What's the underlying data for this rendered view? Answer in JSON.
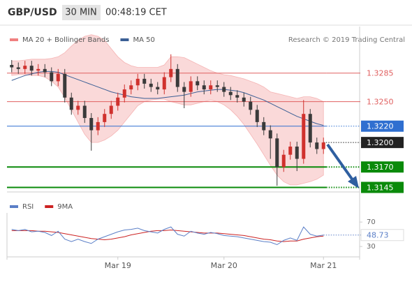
{
  "header": {
    "symbol": "GBP/USD",
    "timeframe": "30 MIN",
    "time": "00:48:19 CET"
  },
  "chart_data": {
    "type": "candlestick",
    "credit": "Research © 2019 Trading Central",
    "up_color": "#d0312d",
    "down_color": "#3a3a3a",
    "categories": [
      null,
      null,
      null,
      null,
      null,
      null,
      null,
      null,
      null,
      null,
      null,
      null,
      null,
      null,
      null,
      null,
      "Mar 19",
      null,
      null,
      null,
      null,
      null,
      null,
      null,
      null,
      null,
      null,
      null,
      null,
      null,
      null,
      null,
      "Mar 20",
      null,
      null,
      null,
      null,
      null,
      null,
      null,
      null,
      null,
      null,
      null,
      null,
      null,
      null,
      "Mar 21"
    ],
    "candles": [
      [
        1.3295,
        1.3301,
        1.3286,
        1.3292
      ],
      [
        1.3292,
        1.3298,
        1.3284,
        1.329
      ],
      [
        1.329,
        1.33,
        1.3284,
        1.3294
      ],
      [
        1.3294,
        1.33,
        1.3282,
        1.3288
      ],
      [
        1.3288,
        1.3296,
        1.3282,
        1.329
      ],
      [
        1.329,
        1.3296,
        1.328,
        1.3286
      ],
      [
        1.3286,
        1.3292,
        1.3269,
        1.3275
      ],
      [
        1.3275,
        1.329,
        1.3269,
        1.3284
      ],
      [
        1.3284,
        1.329,
        1.3249,
        1.3255
      ],
      [
        1.3255,
        1.3261,
        1.3234,
        1.324
      ],
      [
        1.324,
        1.3251,
        1.3234,
        1.3245
      ],
      [
        1.3245,
        1.3251,
        1.3224,
        1.323
      ],
      [
        1.323,
        1.3236,
        1.319,
        1.3215
      ],
      [
        1.3215,
        1.3231,
        1.3209,
        1.3225
      ],
      [
        1.3225,
        1.3241,
        1.3219,
        1.3235
      ],
      [
        1.3235,
        1.3251,
        1.3229,
        1.3245
      ],
      [
        1.3245,
        1.3261,
        1.3239,
        1.3255
      ],
      [
        1.3255,
        1.3271,
        1.3249,
        1.3265
      ],
      [
        1.3265,
        1.3276,
        1.3259,
        1.327
      ],
      [
        1.327,
        1.3284,
        1.3264,
        1.3278
      ],
      [
        1.3278,
        1.3284,
        1.3266,
        1.3272
      ],
      [
        1.3272,
        1.3278,
        1.3262,
        1.3268
      ],
      [
        1.3268,
        1.3274,
        1.3259,
        1.3265
      ],
      [
        1.3265,
        1.3286,
        1.3259,
        1.328
      ],
      [
        1.328,
        1.3308,
        1.3274,
        1.329
      ],
      [
        1.329,
        1.3296,
        1.3262,
        1.3268
      ],
      [
        1.3268,
        1.3274,
        1.3242,
        1.3262
      ],
      [
        1.3262,
        1.3281,
        1.3256,
        1.3275
      ],
      [
        1.3275,
        1.3281,
        1.3264,
        1.327
      ],
      [
        1.327,
        1.3276,
        1.3259,
        1.3265
      ],
      [
        1.3265,
        1.3276,
        1.3259,
        1.327
      ],
      [
        1.327,
        1.3276,
        1.3262,
        1.3268
      ],
      [
        1.3268,
        1.3274,
        1.3256,
        1.3262
      ],
      [
        1.3262,
        1.3268,
        1.3252,
        1.3258
      ],
      [
        1.3258,
        1.3264,
        1.3249,
        1.3255
      ],
      [
        1.3255,
        1.3261,
        1.3244,
        1.325
      ],
      [
        1.325,
        1.3256,
        1.3234,
        1.324
      ],
      [
        1.324,
        1.3246,
        1.3219,
        1.3225
      ],
      [
        1.3225,
        1.3231,
        1.3209,
        1.3215
      ],
      [
        1.3215,
        1.3221,
        1.318,
        1.3205
      ],
      [
        1.3205,
        1.3211,
        1.3147,
        1.317
      ],
      [
        1.317,
        1.3191,
        1.3164,
        1.3185
      ],
      [
        1.3185,
        1.3201,
        1.3179,
        1.3195
      ],
      [
        1.3195,
        1.3201,
        1.3165,
        1.318
      ],
      [
        1.318,
        1.3252,
        1.3174,
        1.3235
      ],
      [
        1.3235,
        1.3241,
        1.3194,
        1.32
      ],
      [
        1.32,
        1.3206,
        1.3186,
        1.3192
      ],
      [
        1.3192,
        1.3206,
        1.3186,
        1.32
      ]
    ],
    "bands": {
      "name": "MA 20 + Bollinger Bands",
      "color": "#f08080",
      "upper": [
        1.33,
        1.33,
        1.3301,
        1.3302,
        1.3302,
        1.3302,
        1.3303,
        1.3305,
        1.331,
        1.3318,
        1.3325,
        1.333,
        1.3332,
        1.333,
        1.3325,
        1.3315,
        1.3305,
        1.3298,
        1.3294,
        1.3292,
        1.3292,
        1.3292,
        1.3292,
        1.3295,
        1.3305,
        1.3305,
        1.3304,
        1.33,
        1.3296,
        1.3292,
        1.3288,
        1.3285,
        1.3283,
        1.3282,
        1.328,
        1.3278,
        1.3275,
        1.3272,
        1.3268,
        1.3262,
        1.326,
        1.3258,
        1.3256,
        1.3254,
        1.3256,
        1.3256,
        1.3254,
        1.325
      ],
      "lower": [
        1.3282,
        1.3283,
        1.3283,
        1.3282,
        1.3282,
        1.328,
        1.3275,
        1.3268,
        1.3255,
        1.324,
        1.3225,
        1.321,
        1.32,
        1.32,
        1.3203,
        1.3208,
        1.3215,
        1.3225,
        1.3235,
        1.3245,
        1.325,
        1.3252,
        1.3253,
        1.3253,
        1.325,
        1.3248,
        1.3246,
        1.3246,
        1.3248,
        1.325,
        1.3252,
        1.325,
        1.3246,
        1.324,
        1.3232,
        1.3222,
        1.321,
        1.3198,
        1.3185,
        1.3172,
        1.316,
        1.3152,
        1.3148,
        1.3148,
        1.315,
        1.3152,
        1.3155,
        1.316
      ]
    },
    "ma50": {
      "name": "MA 50",
      "color": "#3b5f95",
      "values": [
        1.3276,
        1.3279,
        1.3282,
        1.3284,
        1.3286,
        1.3287,
        1.3287,
        1.3286,
        1.3283,
        1.328,
        1.3277,
        1.3274,
        1.3271,
        1.3268,
        1.3265,
        1.3262,
        1.326,
        1.3258,
        1.3256,
        1.3255,
        1.3254,
        1.3254,
        1.3254,
        1.3255,
        1.3256,
        1.3257,
        1.3258,
        1.326,
        1.3262,
        1.3263,
        1.3264,
        1.3265,
        1.3265,
        1.3264,
        1.3263,
        1.3261,
        1.3258,
        1.3255,
        1.3252,
        1.3248,
        1.3244,
        1.324,
        1.3236,
        1.3232,
        1.3229,
        1.3226,
        1.3223,
        1.3221
      ]
    },
    "ylim": [
      1.3142,
      1.3342
    ],
    "levels": [
      {
        "value": 1.3285,
        "color": "#e06060",
        "style": "line",
        "filled": false
      },
      {
        "value": 1.325,
        "label": "1.3250",
        "color": "#e06060",
        "style": "line",
        "filled": false
      },
      {
        "value": 1.322,
        "label": "1.3220",
        "color": "#2f6fd0",
        "style": "line",
        "filled": true
      },
      {
        "value": 1.32,
        "label": "1.3200",
        "color": "#222222",
        "style": "dotted",
        "filled": true
      },
      {
        "value": 1.317,
        "label": "1.3170",
        "color": "#0a8a0a",
        "style": "thick",
        "filled": true
      },
      {
        "value": 1.3145,
        "color": "#0a8a0a",
        "style": "thick",
        "filled": true
      }
    ],
    "rsi": {
      "name": "RSI",
      "color": "#5b7fc7",
      "values": [
        58,
        56,
        58,
        54,
        55,
        53,
        48,
        55,
        42,
        38,
        42,
        38,
        35,
        42,
        46,
        50,
        54,
        57,
        58,
        60,
        56,
        54,
        52,
        58,
        62,
        50,
        47,
        55,
        52,
        50,
        53,
        51,
        48,
        47,
        46,
        44,
        42,
        40,
        38,
        37,
        33,
        40,
        44,
        40,
        62,
        50,
        47,
        48.73
      ]
    },
    "rsi_ma": {
      "name": "9MA",
      "color": "#cc2222",
      "values": [
        56,
        56,
        56,
        56,
        55,
        55,
        54,
        53,
        51,
        49,
        47,
        45,
        43,
        42,
        41,
        42,
        44,
        46,
        49,
        51,
        53,
        55,
        56,
        56,
        57,
        56,
        55,
        54,
        53,
        52,
        52,
        52,
        51,
        50,
        49,
        48,
        46,
        44,
        42,
        41,
        39,
        38,
        39,
        39,
        42,
        44,
        46,
        47
      ]
    },
    "rsi_ylim": [
      13,
      85
    ],
    "rsi_yticks": [
      70,
      30
    ]
  }
}
